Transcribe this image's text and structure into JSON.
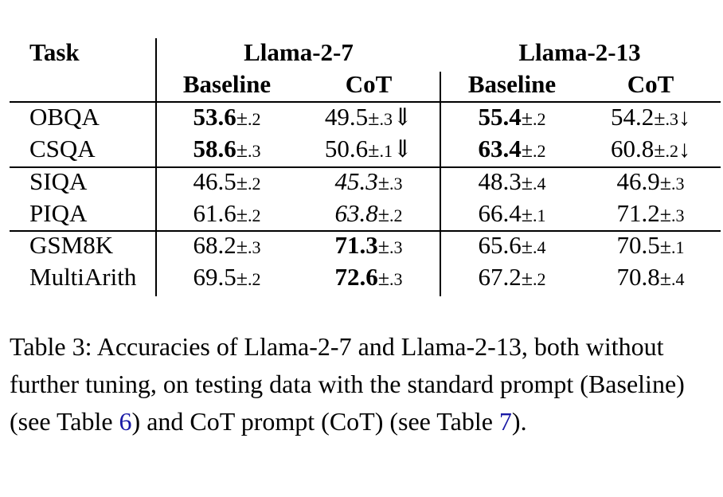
{
  "table": {
    "header": {
      "task": "Task",
      "groups": [
        "Llama-2-7",
        "Llama-2-13"
      ],
      "subcols": [
        "Baseline",
        "CoT",
        "Baseline",
        "CoT"
      ]
    },
    "rows": [
      {
        "task": "OBQA",
        "cells": [
          {
            "value": "53.6",
            "sd": ".2",
            "style": "bold",
            "arrow": ""
          },
          {
            "value": "49.5",
            "sd": ".3",
            "style": "normal",
            "arrow": "⇓"
          },
          {
            "value": "55.4",
            "sd": ".2",
            "style": "bold",
            "arrow": ""
          },
          {
            "value": "54.2",
            "sd": ".3",
            "style": "normal",
            "arrow": "↓"
          }
        ]
      },
      {
        "task": "CSQA",
        "cells": [
          {
            "value": "58.6",
            "sd": ".3",
            "style": "bold",
            "arrow": ""
          },
          {
            "value": "50.6",
            "sd": ".1",
            "style": "normal",
            "arrow": "⇓"
          },
          {
            "value": "63.4",
            "sd": ".2",
            "style": "bold",
            "arrow": ""
          },
          {
            "value": "60.8",
            "sd": ".2",
            "style": "normal",
            "arrow": "↓"
          }
        ]
      },
      {
        "task": "SIQA",
        "cells": [
          {
            "value": "46.5",
            "sd": ".2",
            "style": "normal",
            "arrow": ""
          },
          {
            "value": "45.3",
            "sd": ".3",
            "style": "italic",
            "arrow": ""
          },
          {
            "value": "48.3",
            "sd": ".4",
            "style": "normal",
            "arrow": ""
          },
          {
            "value": "46.9",
            "sd": ".3",
            "style": "normal",
            "arrow": ""
          }
        ]
      },
      {
        "task": "PIQA",
        "cells": [
          {
            "value": "61.6",
            "sd": ".2",
            "style": "normal",
            "arrow": ""
          },
          {
            "value": "63.8",
            "sd": ".2",
            "style": "italic",
            "arrow": ""
          },
          {
            "value": "66.4",
            "sd": ".1",
            "style": "normal",
            "arrow": ""
          },
          {
            "value": "71.2",
            "sd": ".3",
            "style": "normal",
            "arrow": ""
          }
        ]
      },
      {
        "task": "GSM8K",
        "cells": [
          {
            "value": "68.2",
            "sd": ".3",
            "style": "normal",
            "arrow": ""
          },
          {
            "value": "71.3",
            "sd": ".3",
            "style": "bold",
            "arrow": ""
          },
          {
            "value": "65.6",
            "sd": ".4",
            "style": "normal",
            "arrow": ""
          },
          {
            "value": "70.5",
            "sd": ".1",
            "style": "normal",
            "arrow": ""
          }
        ]
      },
      {
        "task": "MultiArith",
        "cells": [
          {
            "value": "69.5",
            "sd": ".2",
            "style": "normal",
            "arrow": ""
          },
          {
            "value": "72.6",
            "sd": ".3",
            "style": "bold",
            "arrow": ""
          },
          {
            "value": "67.2",
            "sd": ".2",
            "style": "normal",
            "arrow": ""
          },
          {
            "value": "70.8",
            "sd": ".4",
            "style": "normal",
            "arrow": ""
          }
        ]
      }
    ]
  },
  "caption": {
    "label": "Table 3:",
    "text_1": "Accuracies of Llama-2-7 and Llama-2-13, both without further tuning, on testing data with the standard prompt (Baseline) (see Table ",
    "ref_1": "6",
    "text_2": ") and CoT prompt (CoT) (see Table ",
    "ref_2": "7",
    "text_3": ")."
  },
  "colors": {
    "reference_link": "#1a1aa6"
  }
}
